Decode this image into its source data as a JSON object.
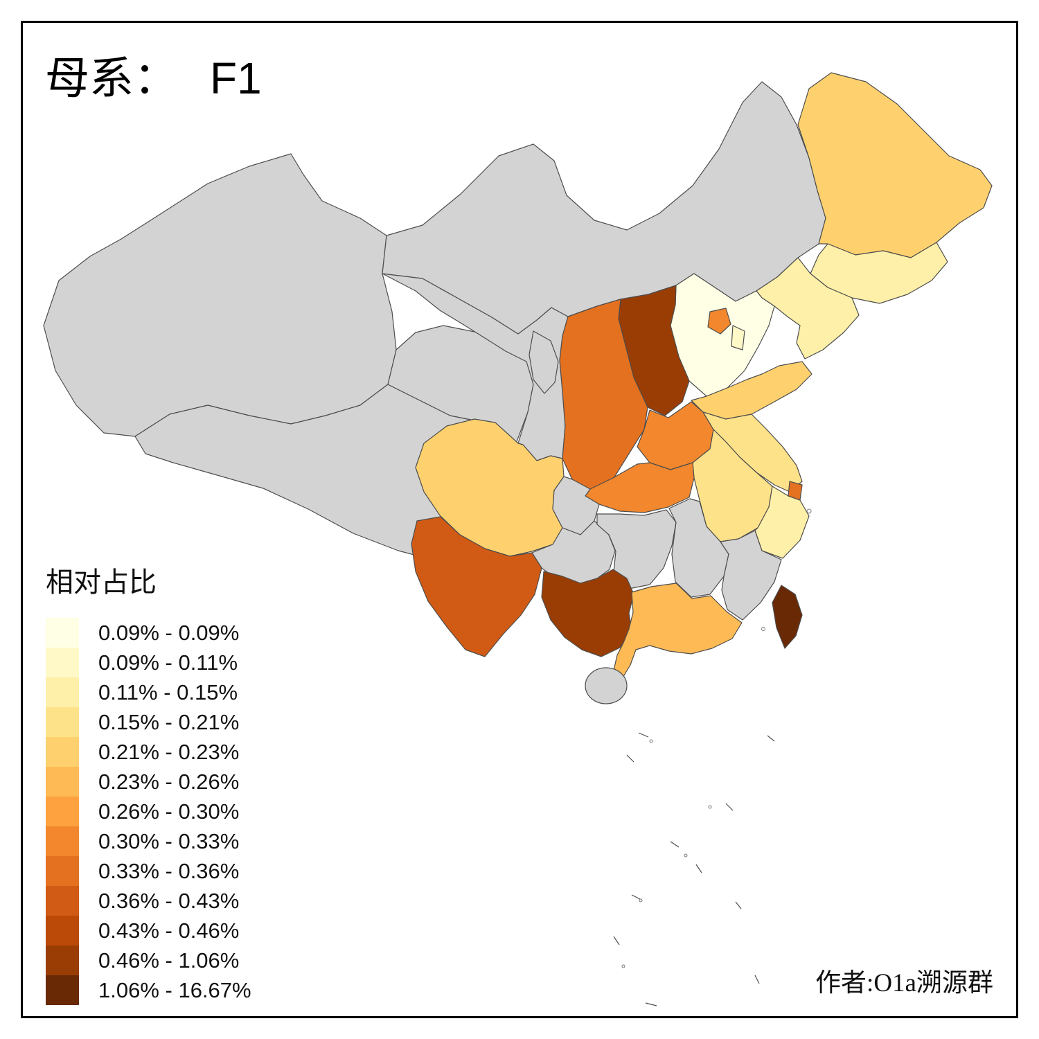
{
  "title": {
    "label": "母系：",
    "value": "F1"
  },
  "legend": {
    "title": "相对占比",
    "bins": [
      {
        "label": "0.09% - 0.09%",
        "color": "#FFFFE5"
      },
      {
        "label": "0.09% - 0.11%",
        "color": "#FFF9C8"
      },
      {
        "label": "0.11% - 0.15%",
        "color": "#FEF0A8"
      },
      {
        "label": "0.15% - 0.21%",
        "color": "#FEE289"
      },
      {
        "label": "0.21% - 0.23%",
        "color": "#FED16E"
      },
      {
        "label": "0.23% - 0.26%",
        "color": "#FEBA54"
      },
      {
        "label": "0.26% - 0.30%",
        "color": "#FDA23E"
      },
      {
        "label": "0.30% - 0.33%",
        "color": "#F2872D"
      },
      {
        "label": "0.33% - 0.36%",
        "color": "#E47120"
      },
      {
        "label": "0.36% - 0.43%",
        "color": "#D15A14"
      },
      {
        "label": "0.43% - 0.46%",
        "color": "#BB4907"
      },
      {
        "label": "0.46% - 1.06%",
        "color": "#993D05"
      },
      {
        "label": "1.06% - 16.67%",
        "color": "#692905"
      }
    ]
  },
  "author": "作者:O1a溯源群",
  "map": {
    "no_data_color": "#D3D3D3",
    "border_color": "#4D4D4D",
    "sea_mark_color": "#888888",
    "provinces": [
      {
        "id": "xinjiang",
        "bin": null
      },
      {
        "id": "tibet",
        "bin": null
      },
      {
        "id": "qinghai",
        "bin": null
      },
      {
        "id": "gansu",
        "bin": null
      },
      {
        "id": "inner-mongolia",
        "bin": null
      },
      {
        "id": "ningxia",
        "bin": null
      },
      {
        "id": "heilongjiang",
        "bin": 4
      },
      {
        "id": "jilin",
        "bin": 2
      },
      {
        "id": "liaoning",
        "bin": 2
      },
      {
        "id": "hebei",
        "bin": 0
      },
      {
        "id": "beijing",
        "bin": 7
      },
      {
        "id": "tianjin",
        "bin": 1
      },
      {
        "id": "shanxi",
        "bin": 11
      },
      {
        "id": "shaanxi",
        "bin": 8
      },
      {
        "id": "shandong",
        "bin": 4
      },
      {
        "id": "henan",
        "bin": 7
      },
      {
        "id": "jiangsu",
        "bin": 3
      },
      {
        "id": "shanghai",
        "bin": 8
      },
      {
        "id": "anhui",
        "bin": 3
      },
      {
        "id": "zhejiang",
        "bin": 2
      },
      {
        "id": "hubei",
        "bin": 7
      },
      {
        "id": "chongqing",
        "bin": null
      },
      {
        "id": "sichuan",
        "bin": 4
      },
      {
        "id": "guizhou",
        "bin": null
      },
      {
        "id": "yunnan",
        "bin": 9
      },
      {
        "id": "hunan",
        "bin": null
      },
      {
        "id": "jiangxi",
        "bin": null
      },
      {
        "id": "fujian",
        "bin": null
      },
      {
        "id": "guangxi",
        "bin": 11
      },
      {
        "id": "guangdong",
        "bin": 5
      },
      {
        "id": "hainan",
        "bin": null
      },
      {
        "id": "taiwan",
        "bin": 12
      }
    ]
  }
}
